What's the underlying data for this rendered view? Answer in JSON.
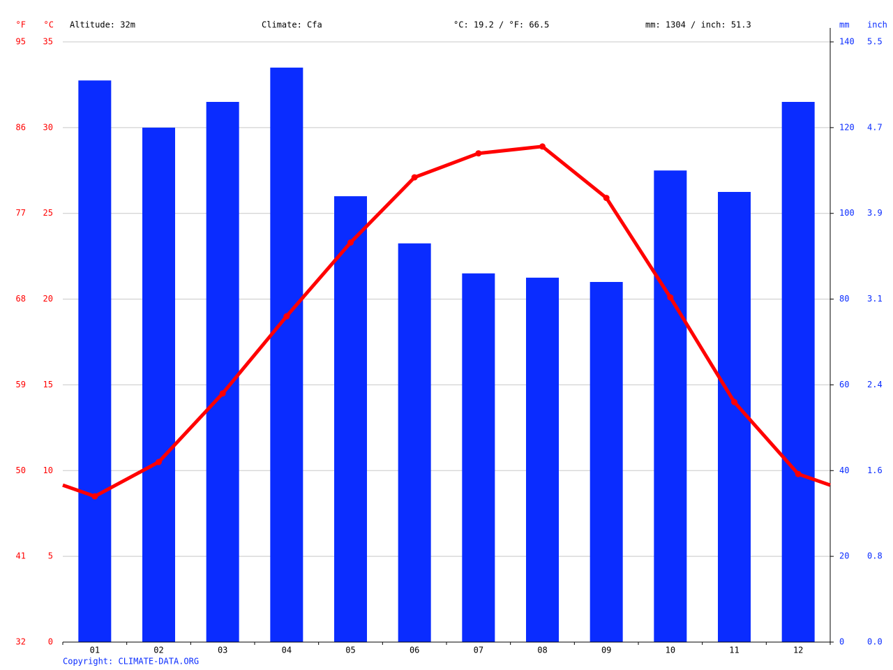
{
  "chart_data": {
    "type": "climate",
    "header": [
      "Altitude: 32m",
      "Climate: Cfa",
      "°C: 19.2 / °F: 66.5",
      "mm: 1304 / inch: 51.3"
    ],
    "y_unit_labels": [
      "°F",
      "°C"
    ],
    "y2_unit_labels": [
      "mm",
      "inch"
    ],
    "footer": "Copyright: CLIMATE-DATA.ORG",
    "categories": [
      "01",
      "02",
      "03",
      "04",
      "05",
      "06",
      "07",
      "08",
      "09",
      "10",
      "11",
      "12"
    ],
    "series": [
      {
        "name": "Precipitation",
        "kind": "bar",
        "axis": "y2",
        "color": "#0a2cff",
        "values": [
          131,
          120,
          126,
          134,
          104,
          93,
          86,
          85,
          84,
          110,
          105,
          126
        ]
      },
      {
        "name": "Temperature",
        "kind": "line",
        "axis": "y",
        "color": "#ff0000",
        "values": [
          8.5,
          10.5,
          14.5,
          19.0,
          23.3,
          27.1,
          28.5,
          28.9,
          25.9,
          20.1,
          14.0,
          9.8
        ]
      }
    ],
    "ylim": [
      0,
      35
    ],
    "yticks": [
      0,
      5,
      10,
      15,
      20,
      25,
      30,
      35
    ],
    "y_fahrenheit_ticks": [
      {
        "value": 0,
        "label": "32"
      },
      {
        "value": 5,
        "label": "41"
      },
      {
        "value": 10,
        "label": "50"
      },
      {
        "value": 15,
        "label": "59"
      },
      {
        "value": 20,
        "label": "68"
      },
      {
        "value": 25,
        "label": "77"
      },
      {
        "value": 30,
        "label": "86"
      },
      {
        "value": 35,
        "label": "95"
      }
    ],
    "y2lim": [
      0,
      140
    ],
    "y2ticks": [
      0,
      20,
      40,
      60,
      80,
      100,
      120,
      140
    ],
    "y2_inch_ticks": [
      {
        "value": 0,
        "label": "0.0"
      },
      {
        "value": 20,
        "label": "0.8"
      },
      {
        "value": 40,
        "label": "1.6"
      },
      {
        "value": 60,
        "label": "2.4"
      },
      {
        "value": 80,
        "label": "3.1"
      },
      {
        "value": 100,
        "label": "3.9"
      },
      {
        "value": 120,
        "label": "4.7"
      },
      {
        "value": 140,
        "label": "5.5"
      }
    ],
    "grid": true
  }
}
